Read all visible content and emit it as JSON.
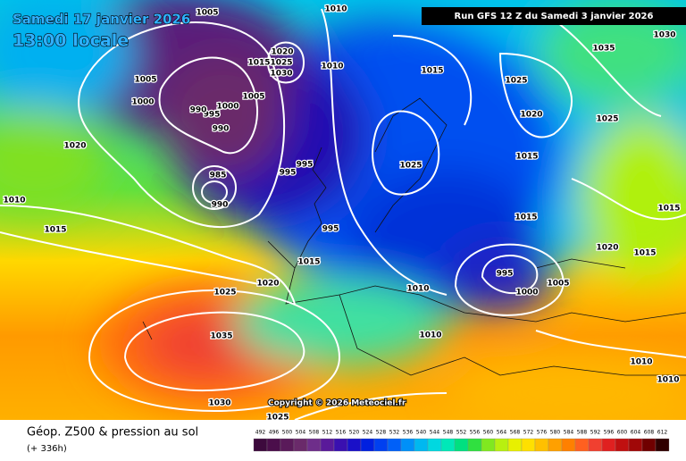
{
  "header": {
    "valid_date": "Samedi 17 janvier 2026",
    "local_time": "13:00 locale",
    "run": "Run GFS 12 Z du Samedi 3 janvier 2026"
  },
  "copyright": "Copyright © 2026 Meteociel.fr",
  "isobars": {
    "labels": [
      1005,
      1010,
      1035,
      1030,
      1005,
      1000,
      1020,
      1025,
      1015,
      1030,
      1010,
      1015,
      1025,
      1005,
      1000,
      995,
      990,
      990,
      1020,
      1025,
      1020,
      995,
      995,
      1025,
      1015,
      985,
      990,
      1010,
      1015,
      995,
      1015,
      1015,
      1020,
      1015,
      1015,
      1020,
      995,
      1005,
      1000,
      1010,
      1025,
      1035,
      1010,
      1010,
      1010,
      1030,
      1025
    ]
  },
  "legend": {
    "title": "Géop. Z500 & pression au sol",
    "lead": "(+ 336h)",
    "scale": {
      "labels": [
        492,
        496,
        500,
        504,
        508,
        512,
        516,
        520,
        524,
        528,
        532,
        536,
        540,
        544,
        548,
        552,
        556,
        560,
        564,
        568,
        572,
        576,
        580,
        584,
        588,
        592,
        596,
        600,
        604,
        608,
        612
      ],
      "colors": [
        "#3d0a3d",
        "#4b0e4b",
        "#5a1a5a",
        "#6a2a6a",
        "#6e2e8a",
        "#5a1a9a",
        "#3a10b0",
        "#1a10c8",
        "#0020e0",
        "#0040f0",
        "#0060f8",
        "#0090f8",
        "#00b8f0",
        "#00d8e0",
        "#00e8b8",
        "#00e080",
        "#30e040",
        "#80e820",
        "#b8f010",
        "#e8f000",
        "#ffe000",
        "#ffc000",
        "#ffa000",
        "#ff8000",
        "#ff6020",
        "#f04030",
        "#e02020",
        "#c01010",
        "#a00808",
        "#700000",
        "#300000"
      ]
    }
  }
}
